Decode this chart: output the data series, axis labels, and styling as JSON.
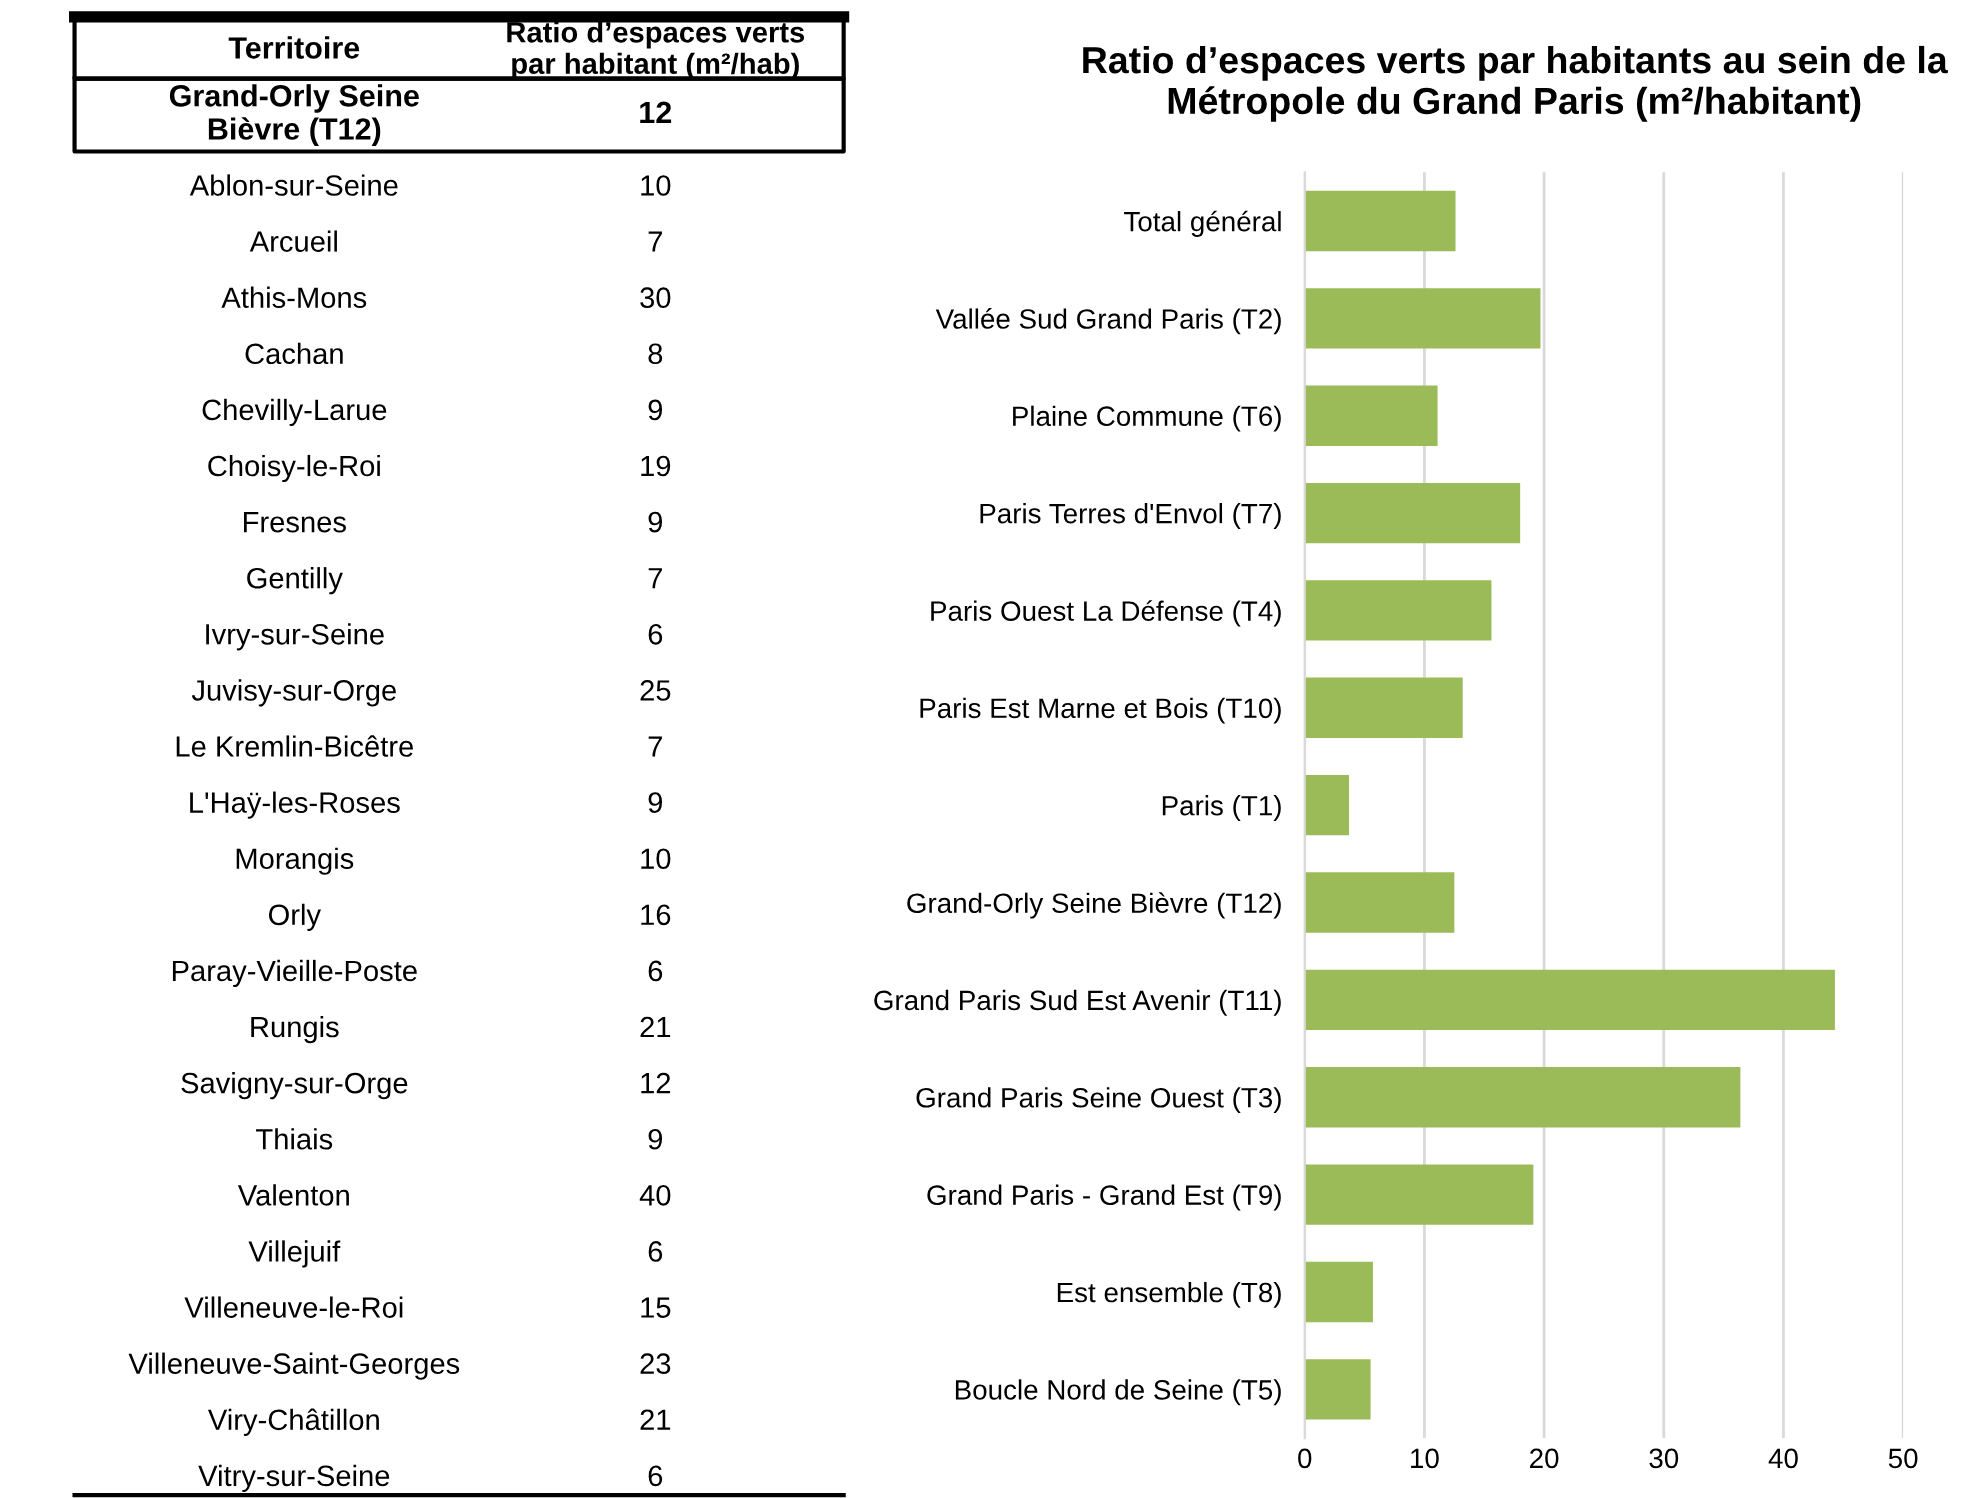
{
  "chart_data": [
    {
      "type": "other",
      "annotations": [
        "Territoire",
        "Ratio d’espaces verts par habitant (m²/hab)"
      ],
      "categories": [
        "Grand-Orly Seine Bièvre (T12)",
        "Ablon-sur-Seine",
        "Arcueil",
        "Athis-Mons",
        "Cachan",
        "Chevilly-Larue",
        "Choisy-le-Roi",
        "Fresnes",
        "Gentilly",
        "Ivry-sur-Seine",
        "Juvisy-sur-Orge",
        "Le Kremlin-Bicêtre",
        "L'Haÿ-les-Roses",
        "Morangis",
        "Orly",
        "Paray-Vieille-Poste",
        "Rungis",
        "Savigny-sur-Orge",
        "Thiais",
        "Valenton",
        "Villejuif",
        "Villeneuve-le-Roi",
        "Villeneuve-Saint-Georges",
        "Viry-Châtillon",
        "Vitry-sur-Seine"
      ],
      "values": [
        12,
        10,
        7,
        30,
        8,
        9,
        19,
        9,
        7,
        6,
        25,
        7,
        9,
        10,
        16,
        6,
        21,
        12,
        9,
        40,
        6,
        15,
        23,
        21,
        6
      ],
      "data_labels": true
    },
    {
      "type": "bar",
      "orientation": "horizontal",
      "title": "Ratio d’espaces verts par habitants au sein de la Métropole du Grand Paris (m²/habitant)",
      "categories": [
        "Total général",
        "Vallée Sud Grand Paris (T2)",
        "Plaine Commune (T6)",
        "Paris Terres d'Envol (T7)",
        "Paris Ouest La Défense (T4)",
        "Paris Est Marne et Bois (T10)",
        "Paris (T1)",
        "Grand-Orly Seine Bièvre (T12)",
        "Grand Paris Sud Est Avenir (T11)",
        "Grand Paris Seine Ouest (T3)",
        "Grand Paris - Grand Est (T9)",
        "Est ensemble (T8)",
        "Boucle Nord de Seine (T5)"
      ],
      "values": [
        12.6,
        19.7,
        11.1,
        18.0,
        15.6,
        13.2,
        3.7,
        12.5,
        44.3,
        36.4,
        19.1,
        5.7,
        5.5
      ],
      "color": "#9bbb59",
      "xlim": [
        0,
        50
      ],
      "xticks": [
        0,
        10,
        20,
        30,
        40,
        50
      ],
      "grid": "x"
    }
  ]
}
